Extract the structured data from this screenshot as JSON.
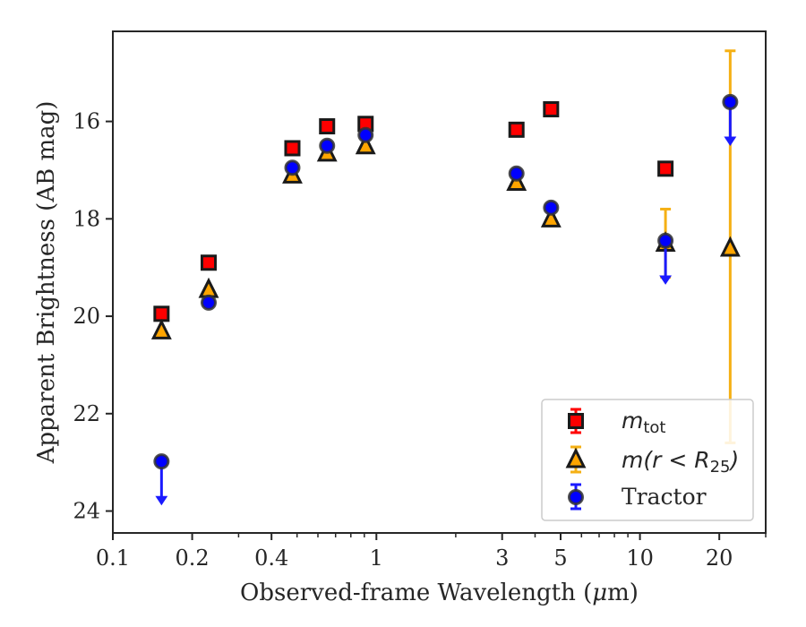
{
  "chart_data": {
    "type": "scatter",
    "xlabel_prefix": "Observed-frame Wavelength (",
    "xlabel_mu": "μ",
    "xlabel_suffix": "m)",
    "ylabel": "Apparent Brightness (AB mag)",
    "x_scale": "log",
    "y_inverted": true,
    "xlim": [
      0.1,
      30
    ],
    "ylim": [
      24.45,
      14.15
    ],
    "x_ticks": [
      {
        "value": 0.1,
        "label": "0.1"
      },
      {
        "value": 0.2,
        "label": "0.2"
      },
      {
        "value": 0.4,
        "label": "0.4"
      },
      {
        "value": 1,
        "label": "1"
      },
      {
        "value": 3,
        "label": "3"
      },
      {
        "value": 5,
        "label": "5"
      },
      {
        "value": 10,
        "label": "10"
      },
      {
        "value": 20,
        "label": "20"
      }
    ],
    "x_minor_ticks": [
      0.3,
      0.5,
      0.6,
      0.7,
      0.8,
      0.9,
      2,
      4,
      6,
      7,
      8,
      9,
      30
    ],
    "y_ticks": [
      {
        "value": 16,
        "label": "16"
      },
      {
        "value": 18,
        "label": "18"
      },
      {
        "value": 20,
        "label": "20"
      },
      {
        "value": 22,
        "label": "22"
      },
      {
        "value": 24,
        "label": "24"
      }
    ],
    "series": [
      {
        "key": "mtot",
        "name_main": "m",
        "name_sub": "tot",
        "marker": "square",
        "color": "#ff0000",
        "edge_color": "#1a1a1a",
        "errbar_color": "#ff0000",
        "points": [
          {
            "x": 0.153,
            "y": 19.95
          },
          {
            "x": 0.231,
            "y": 18.9
          },
          {
            "x": 0.48,
            "y": 16.55
          },
          {
            "x": 0.65,
            "y": 16.1
          },
          {
            "x": 0.91,
            "y": 16.05
          },
          {
            "x": 3.4,
            "y": 16.17
          },
          {
            "x": 4.6,
            "y": 15.75
          },
          {
            "x": 12.5,
            "y": 16.97
          }
        ]
      },
      {
        "key": "mr25",
        "name_main": "m(r < R",
        "name_sub": "25",
        "name_close": ")",
        "marker": "triangle",
        "color": "#ffa500",
        "edge_color": "#1a1a1a",
        "errbar_color": "#f5b014",
        "points": [
          {
            "x": 0.153,
            "y": 20.3
          },
          {
            "x": 0.231,
            "y": 19.45
          },
          {
            "x": 0.48,
            "y": 17.1
          },
          {
            "x": 0.65,
            "y": 16.65
          },
          {
            "x": 0.91,
            "y": 16.5
          },
          {
            "x": 3.4,
            "y": 17.25
          },
          {
            "x": 4.6,
            "y": 18.0
          },
          {
            "x": 12.5,
            "y": 18.5,
            "err_lo": 0.7,
            "err_hi": 0.7
          },
          {
            "x": 22.0,
            "y": 18.6,
            "err_lo": 4.05,
            "err_hi": 4.0
          }
        ]
      },
      {
        "key": "tractor",
        "name": "Tractor",
        "marker": "circle",
        "color": "#0000ff",
        "edge_color": "#333333",
        "errbar_color": "#1a1aff",
        "points": [
          {
            "x": 0.153,
            "y": 22.98,
            "upper_limit": true
          },
          {
            "x": 0.231,
            "y": 19.72
          },
          {
            "x": 0.48,
            "y": 16.95
          },
          {
            "x": 0.65,
            "y": 16.5
          },
          {
            "x": 0.91,
            "y": 16.28
          },
          {
            "x": 3.4,
            "y": 17.07
          },
          {
            "x": 4.6,
            "y": 17.77
          },
          {
            "x": 12.5,
            "y": 18.45,
            "upper_limit": true
          },
          {
            "x": 22.0,
            "y": 15.6,
            "upper_limit": true
          }
        ]
      }
    ],
    "legend_position": "lower right",
    "grid": false
  }
}
